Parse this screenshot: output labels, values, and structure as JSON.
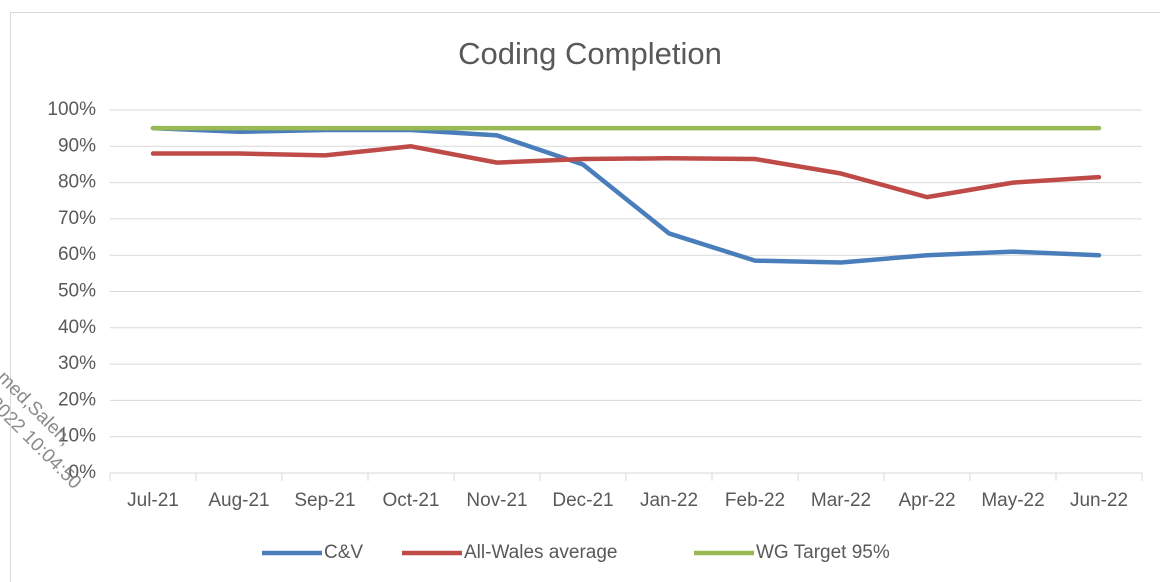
{
  "chart_data": {
    "type": "line",
    "title": "Coding Completion",
    "categories": [
      "Jul-21",
      "Aug-21",
      "Sep-21",
      "Oct-21",
      "Nov-21",
      "Dec-21",
      "Jan-22",
      "Feb-22",
      "Mar-22",
      "Apr-22",
      "May-22",
      "Jun-22"
    ],
    "series": [
      {
        "name": "C&V",
        "color": "#4a7ebb",
        "values": [
          95,
          94,
          94.5,
          94.5,
          93,
          85,
          66,
          58.5,
          58,
          60,
          61,
          60
        ]
      },
      {
        "name": "All-Wales average",
        "color": "#be4b48",
        "values": [
          88,
          88,
          87.5,
          90,
          85.5,
          86.5,
          86.7,
          86.5,
          82.5,
          76,
          80,
          81.5
        ]
      },
      {
        "name": "WG Target 95%",
        "color": "#98b954",
        "values": [
          95,
          95,
          95,
          95,
          95,
          95,
          95,
          95,
          95,
          95,
          95,
          95
        ]
      }
    ],
    "ylim": [
      0,
      100
    ],
    "yticks": [
      {
        "value": 0,
        "label": "0%"
      },
      {
        "value": 10,
        "label": "10%"
      },
      {
        "value": 20,
        "label": "20%"
      },
      {
        "value": 30,
        "label": "30%"
      },
      {
        "value": 40,
        "label": "40%"
      },
      {
        "value": 50,
        "label": "50%"
      },
      {
        "value": 60,
        "label": "60%"
      },
      {
        "value": 70,
        "label": "70%"
      },
      {
        "value": 80,
        "label": "80%"
      },
      {
        "value": 90,
        "label": "90%"
      },
      {
        "value": 100,
        "label": "100%"
      }
    ],
    "grid": true,
    "legend": "bottom",
    "watermark": [
      "med,Saleh,",
      "2022 10:04:50"
    ]
  }
}
